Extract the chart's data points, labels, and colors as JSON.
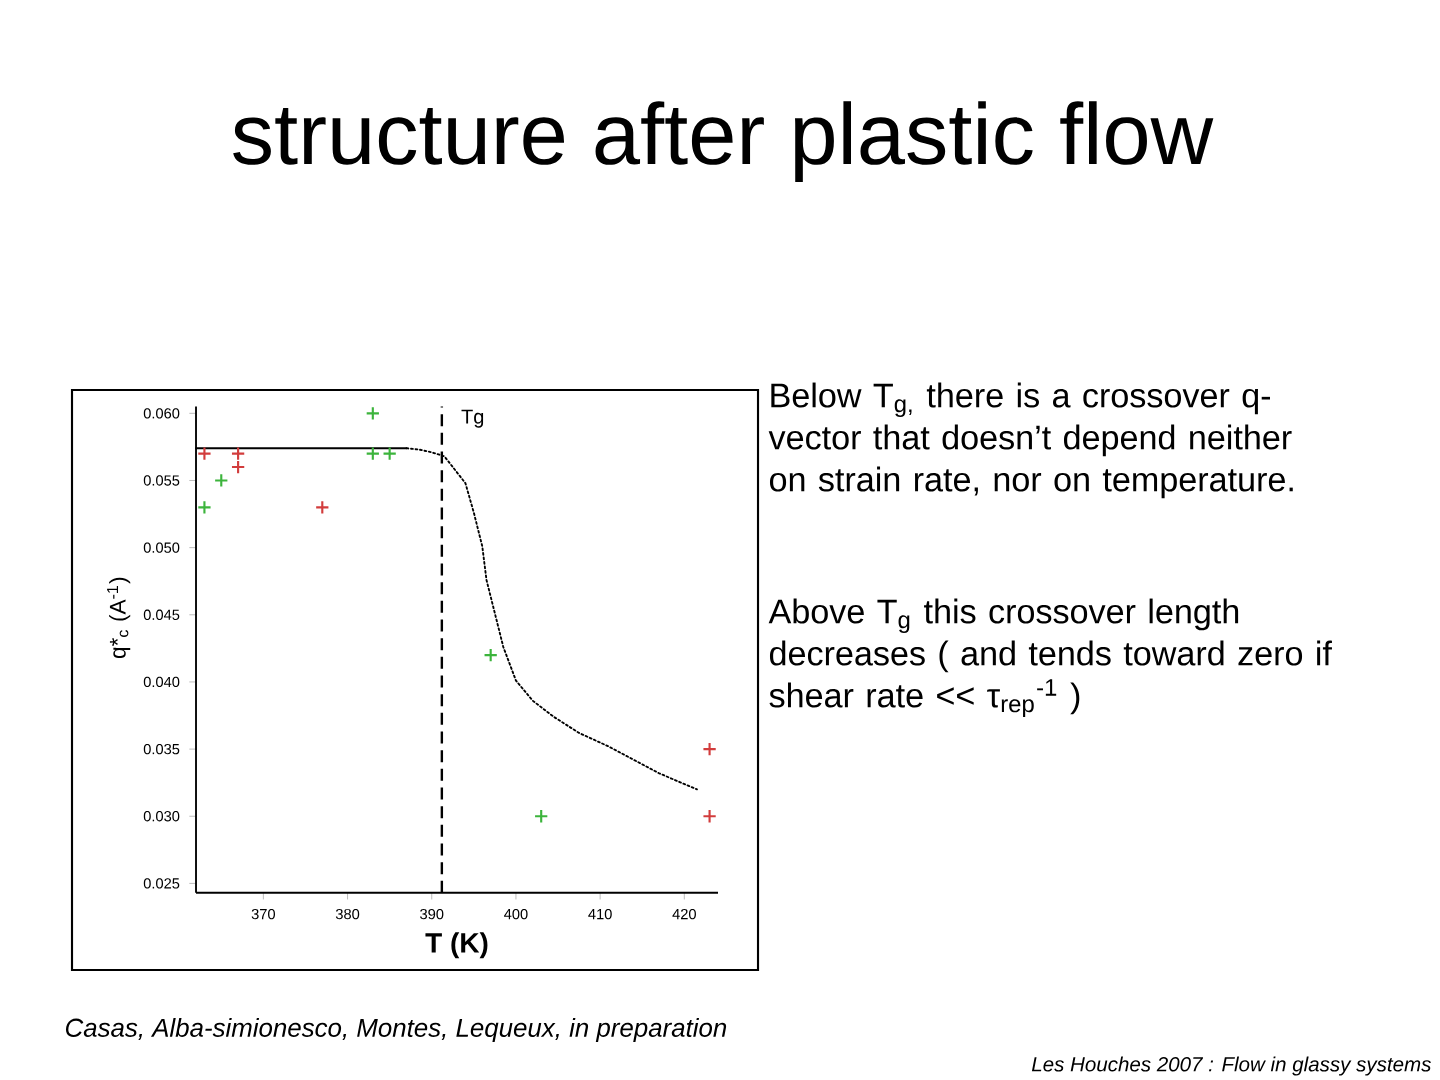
{
  "chart_data": {
    "type": "scatter",
    "title": "structure after plastic flow",
    "xlabel": "T (K)",
    "ylabel": "q*$_{c}$ (A$^{-1}$)",
    "annotations": [
      "Below T$_{g,}$ there is a crossover q-vector that doesn’t depend neither on strain rate, nor on temperature.",
      "Above T$_{g}$ this crossover length decreases ( and tends toward zero if shear rate << τ$_{rep}$$^{-1}$ )",
      "Casas, Alba-simionesco, Montes, Lequeux, in preparation",
      "Les Houches 2007 : Flow in glassy systems"
    ],
    "xlim": [
      362,
      424
    ],
    "ylim": [
      0.0243,
      0.0605
    ],
    "xticks": [
      370,
      380,
      390,
      400,
      410,
      420
    ],
    "yticks": [
      {
        "value": 0.025,
        "label": "0.025"
      },
      {
        "value": 0.03,
        "label": "0.030"
      },
      {
        "value": 0.035,
        "label": "0.035"
      },
      {
        "value": 0.04,
        "label": "0.040"
      },
      {
        "value": 0.045,
        "label": "0.045"
      },
      {
        "value": 0.05,
        "label": "0.050"
      },
      {
        "value": 0.055,
        "label": "0.055"
      },
      {
        "value": 0.06,
        "label": "0.060"
      }
    ],
    "marker": "cross",
    "ref_lines": [
      {
        "axis": "x",
        "value": 391.2,
        "label": "Tg",
        "line_style": "dashed",
        "color": "#000000"
      }
    ],
    "series": [
      {
        "type": "line",
        "color": "#000000",
        "line_style": "solid",
        "marker": "none",
        "x": [
          362,
          387
        ],
        "values": [
          0.0574,
          0.0574
        ]
      },
      {
        "type": "line",
        "color": "#000000",
        "line_style": "dotted",
        "marker": "none",
        "x": [
          387,
          388.5,
          390,
          391.5,
          392.5,
          394,
          395,
          396,
          396.5,
          397.5,
          398.5,
          400,
          402,
          404.5,
          407.5,
          411,
          414,
          417,
          421.5
        ],
        "values": [
          0.0574,
          0.0573,
          0.0571,
          0.0568,
          0.056,
          0.0548,
          0.0526,
          0.0501,
          0.0476,
          0.0451,
          0.0426,
          0.0401,
          0.0386,
          0.0374,
          0.0362,
          0.0352,
          0.0342,
          0.0332,
          0.032
        ]
      },
      {
        "color": "#d23c3c",
        "x": [
          363,
          367,
          367,
          377,
          423,
          423
        ],
        "values": [
          0.057,
          0.057,
          0.056,
          0.053,
          0.035,
          0.03
        ]
      },
      {
        "color": "#3cb43c",
        "x": [
          363,
          365,
          383,
          383,
          385,
          397,
          403
        ],
        "values": [
          0.053,
          0.055,
          0.06,
          0.057,
          0.057,
          0.042,
          0.03
        ]
      }
    ]
  }
}
